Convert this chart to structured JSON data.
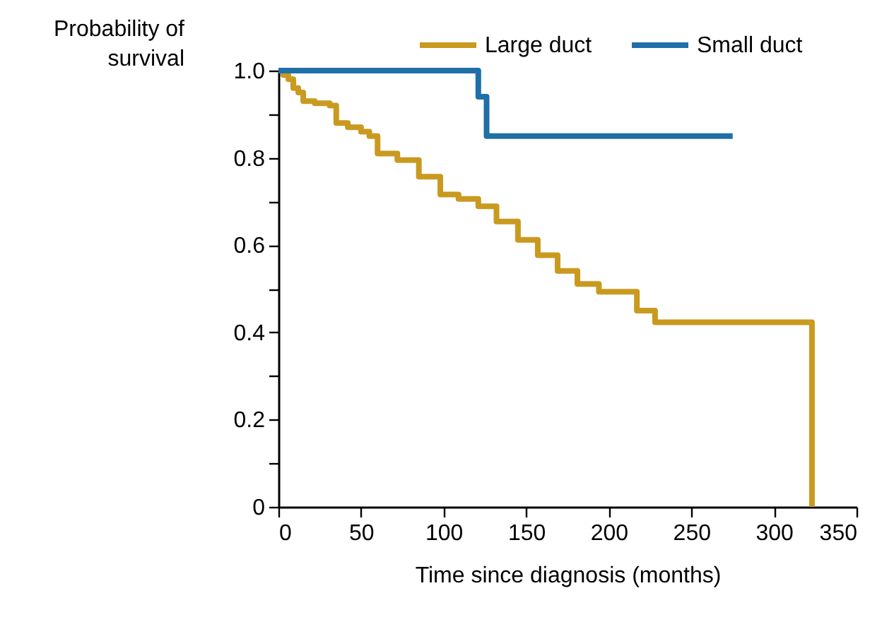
{
  "chart_data": {
    "type": "step",
    "xlabel": "Time since diagnosis (months)",
    "ylabel": "Probability of survival",
    "xlim": [
      0,
      350
    ],
    "xticks": [
      0,
      50,
      100,
      150,
      200,
      250,
      300,
      350
    ],
    "ylim": [
      0,
      1
    ],
    "yticks": [
      0,
      {
        "value": 0.1,
        "label": null
      },
      0.2,
      {
        "value": 0.3,
        "label": null
      },
      0.4,
      {
        "value": 0.5,
        "label": null
      },
      0.6,
      {
        "value": 0.7,
        "label": null
      },
      0.8,
      {
        "value": 0.9,
        "label": null
      },
      {
        "value": 1,
        "label": "1.0"
      }
    ],
    "grid": false,
    "legend": "top right",
    "line_style": "solid",
    "marker": "none",
    "series": [
      {
        "name": "Large duct",
        "color": "#c99a1f",
        "x": [
          0,
          3,
          6,
          9,
          12,
          15,
          22,
          31,
          35,
          42,
          50,
          55,
          60,
          72,
          85,
          98,
          109,
          121,
          132,
          145,
          157,
          169,
          181,
          194,
          217,
          228,
          323
        ],
        "values": [
          1,
          0.99,
          0.98,
          0.96,
          0.95,
          0.93,
          0.925,
          0.92,
          0.88,
          0.87,
          0.86,
          0.85,
          0.81,
          0.795,
          0.757,
          0.716,
          0.706,
          0.689,
          0.654,
          0.612,
          0.577,
          0.541,
          0.511,
          0.493,
          0.45,
          0.423,
          0
        ]
      },
      {
        "name": "Small duct",
        "color": "#1f6fa8",
        "x": [
          0,
          121,
          126,
          275
        ],
        "values": [
          1,
          0.94,
          0.85,
          0.85
        ]
      }
    ]
  }
}
